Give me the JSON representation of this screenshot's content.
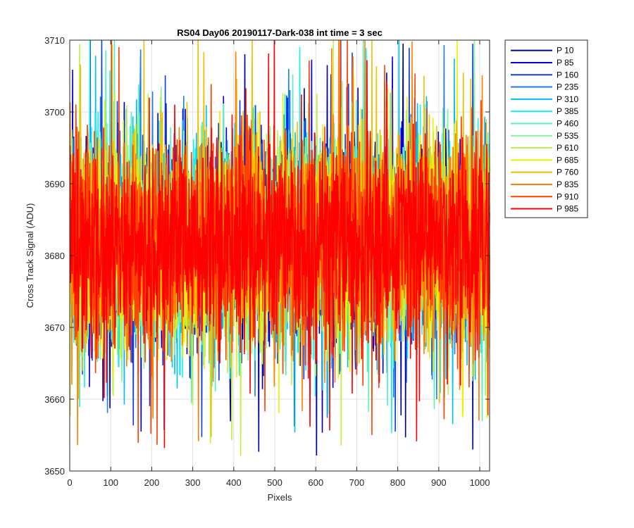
{
  "chart_data": {
    "type": "line",
    "title": "RS04 Day06 20190117-Dark-038 int time = 3 sec",
    "xlabel": "Pixels",
    "ylabel": "Cross Track Signal (ADU)",
    "xlim": [
      0,
      1024
    ],
    "ylim": [
      3650,
      3710
    ],
    "xticks": [
      0,
      100,
      200,
      300,
      400,
      500,
      600,
      700,
      800,
      900,
      1000
    ],
    "yticks": [
      3650,
      3660,
      3670,
      3680,
      3690,
      3700,
      3710
    ],
    "grid": true,
    "legend_position": "outside-top-right",
    "noise": {
      "mean": 3682,
      "min": 3652,
      "max": 3710
    },
    "series": [
      {
        "name": "P 10",
        "color": "#00009f"
      },
      {
        "name": "P 85",
        "color": "#0000e6"
      },
      {
        "name": "P 160",
        "color": "#0f3fe6"
      },
      {
        "name": "P 235",
        "color": "#1f7fe6"
      },
      {
        "name": "P 310",
        "color": "#00c0f0"
      },
      {
        "name": "P 385",
        "color": "#19f0f0"
      },
      {
        "name": "P 460",
        "color": "#55f0c0"
      },
      {
        "name": "P 535",
        "color": "#86f39a"
      },
      {
        "name": "P 610",
        "color": "#c0f040"
      },
      {
        "name": "P 685",
        "color": "#f0f000"
      },
      {
        "name": "P 760",
        "color": "#f0c000"
      },
      {
        "name": "P 835",
        "color": "#ff8000"
      },
      {
        "name": "P 910",
        "color": "#ff4000"
      },
      {
        "name": "P 985",
        "color": "#ff0000"
      }
    ]
  }
}
